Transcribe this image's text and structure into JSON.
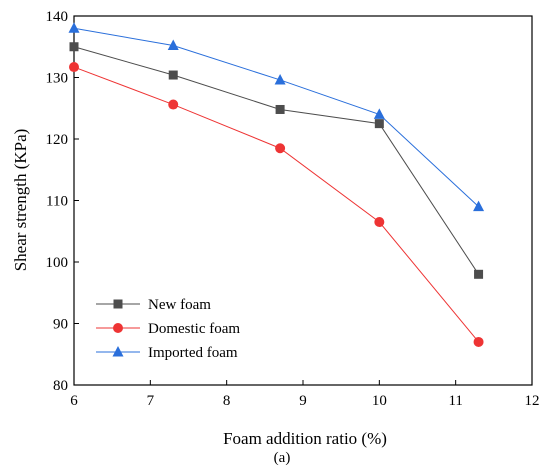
{
  "chart_data": {
    "type": "line",
    "xlabel": "Foam addition ratio (%)",
    "ylabel": "Shear strength (KPa)",
    "caption": "(a)",
    "xlim": [
      6,
      12
    ],
    "ylim": [
      80,
      140
    ],
    "xticks": [
      6,
      7,
      8,
      9,
      10,
      11,
      12
    ],
    "yticks": [
      80,
      90,
      100,
      110,
      120,
      130,
      140
    ],
    "grid": false,
    "legend_position": "bottom-left",
    "series": [
      {
        "name": "New foam",
        "marker": "square",
        "color": "#4d4d4d",
        "x": [
          6,
          7.3,
          8.7,
          10,
          11.3
        ],
        "y": [
          135,
          130.4,
          124.8,
          122.5,
          98
        ]
      },
      {
        "name": "Domestic foam",
        "marker": "circle",
        "color": "#ee3434",
        "x": [
          6,
          7.3,
          8.7,
          10,
          11.3
        ],
        "y": [
          131.7,
          125.6,
          118.5,
          106.5,
          87
        ]
      },
      {
        "name": "Imported foam",
        "marker": "triangle",
        "color": "#2a6fdb",
        "x": [
          6,
          7.3,
          8.7,
          10,
          11.3
        ],
        "y": [
          138,
          135.2,
          129.6,
          124,
          109
        ]
      }
    ]
  }
}
